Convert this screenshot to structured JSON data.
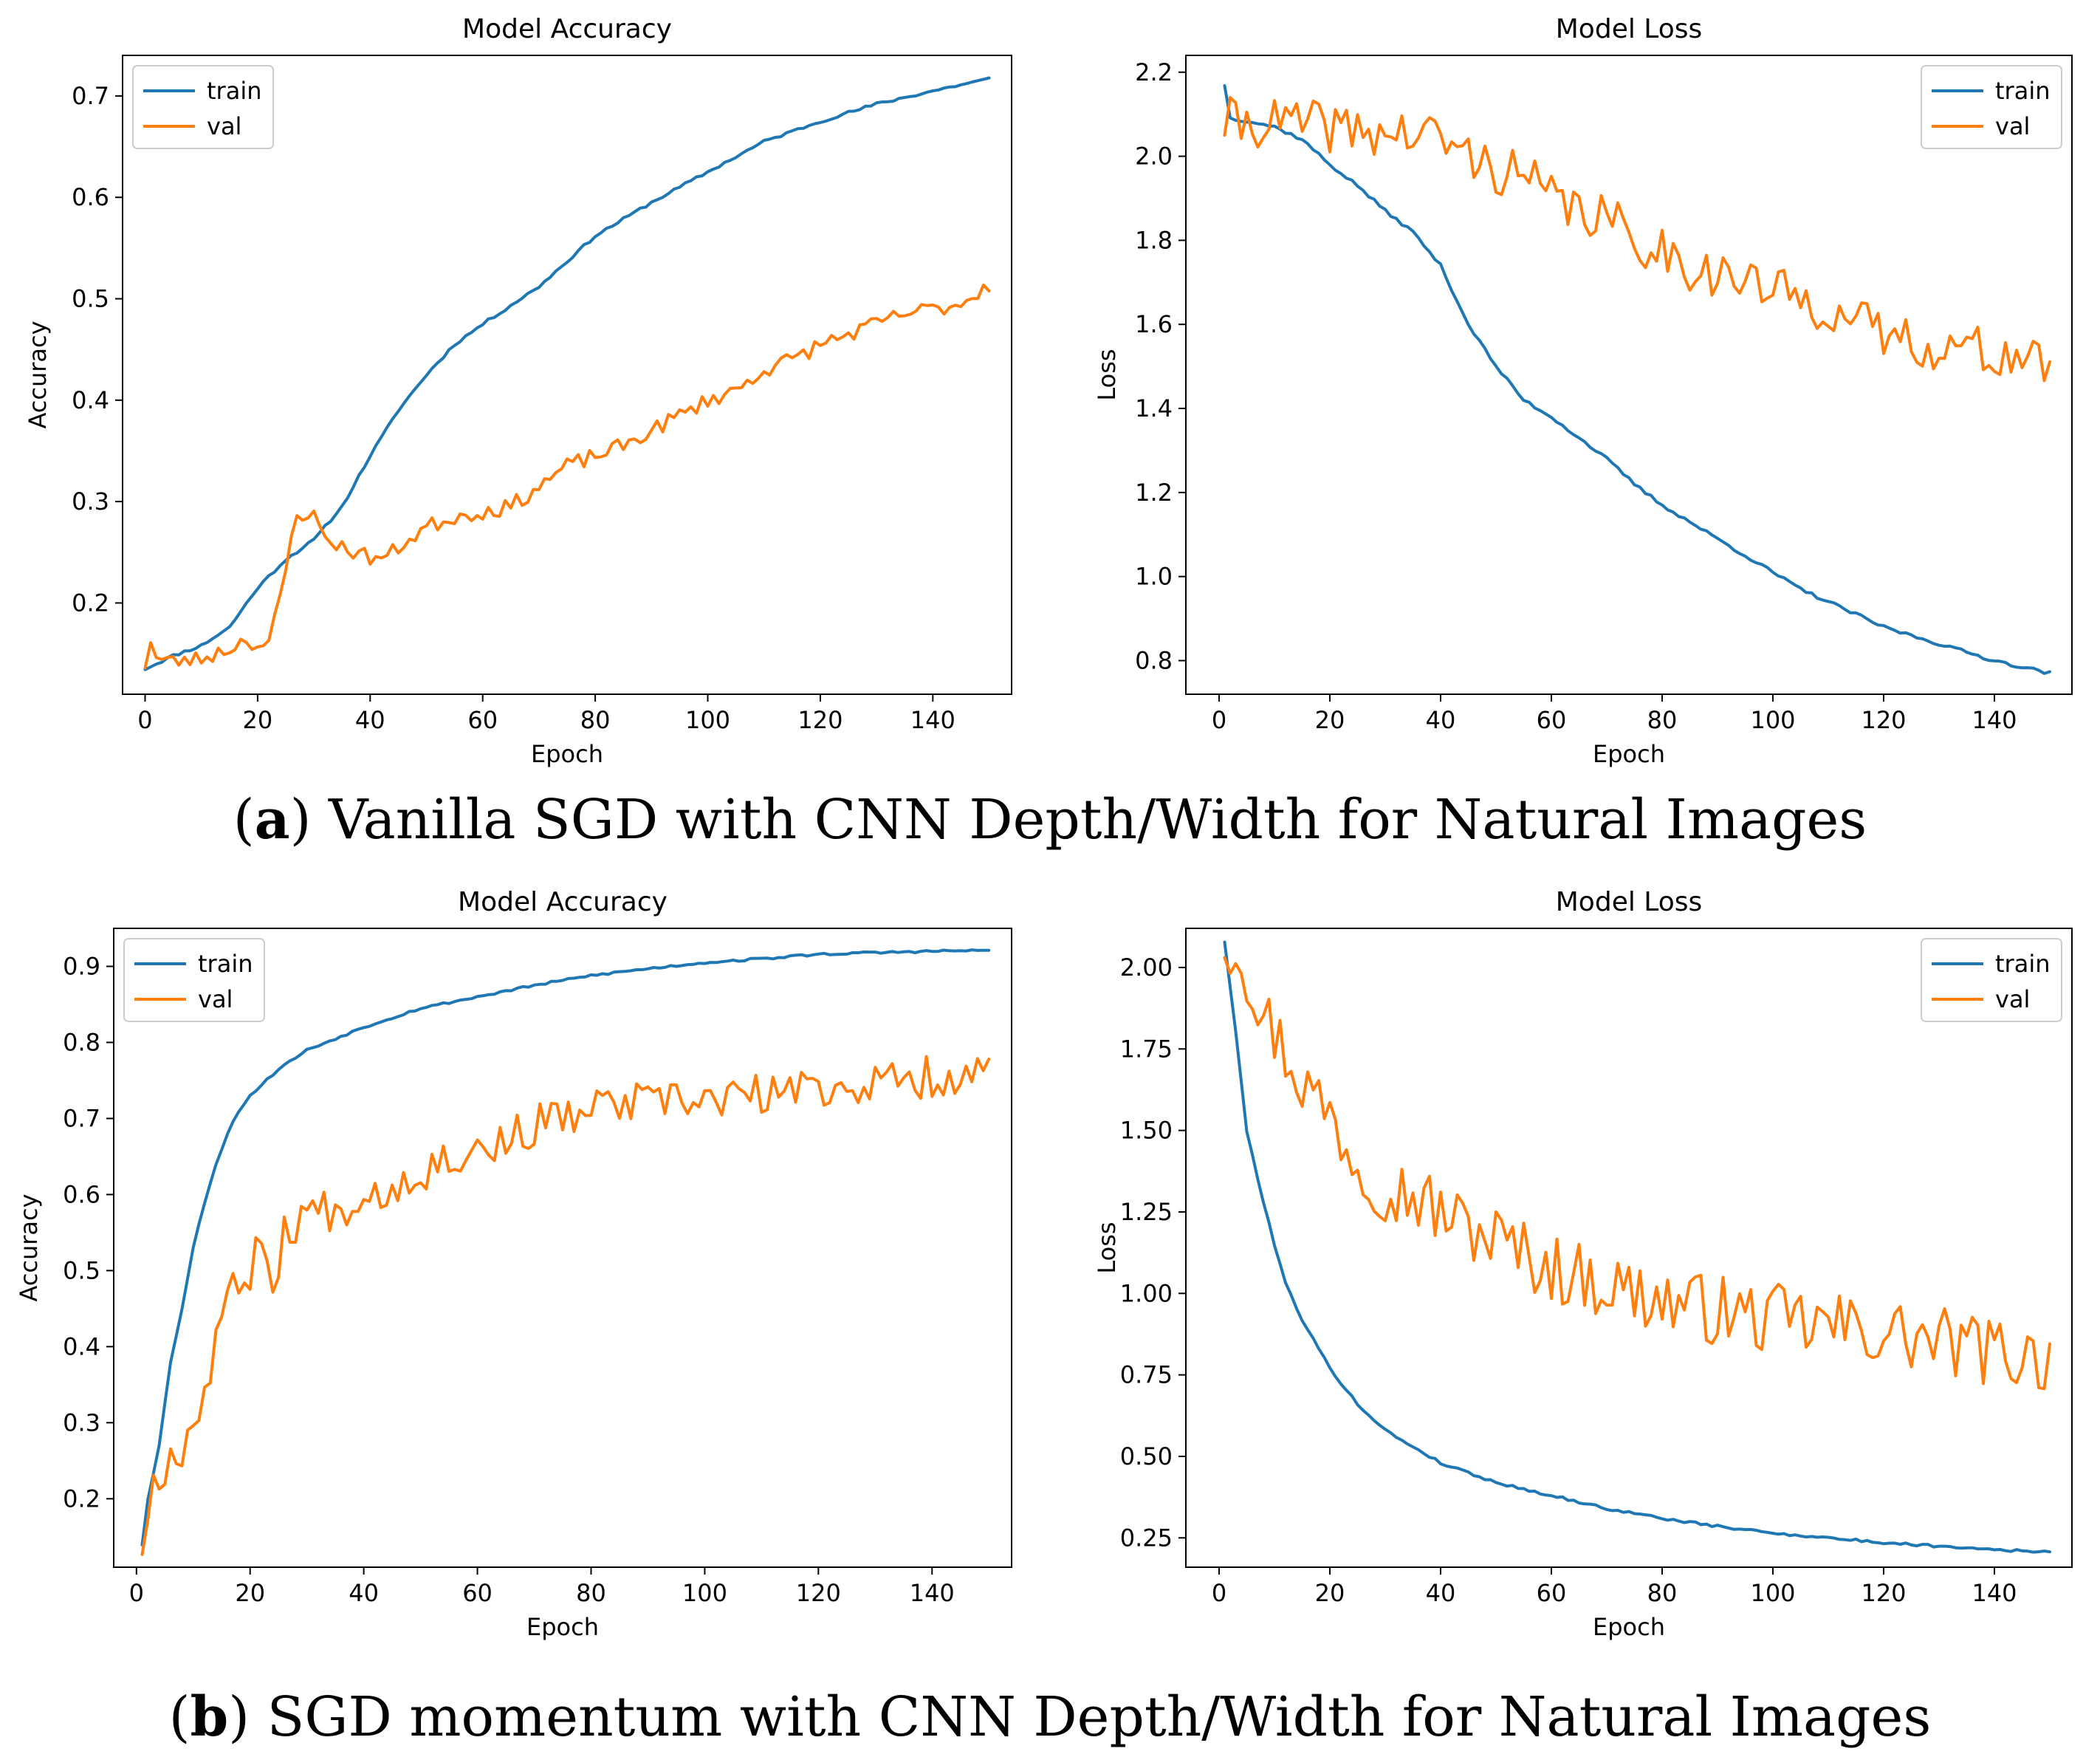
{
  "captions": {
    "a": {
      "letter": "a",
      "text": " Vanilla SGD with CNN Depth/Width for Natural Images"
    },
    "b": {
      "letter": "b",
      "text": " SGD momentum with CNN Depth/Width for Natural Images"
    }
  },
  "series_colors": {
    "train": "#1f77b4",
    "val": "#ff7f0e"
  },
  "chart_data": [
    {
      "id": "a-accuracy",
      "type": "line",
      "title": "Model Accuracy",
      "xlabel": "Epoch",
      "ylabel": "Accuracy",
      "xlim": [
        -4,
        154
      ],
      "ylim": [
        0.11,
        0.74
      ],
      "xticks": [
        0,
        20,
        40,
        60,
        80,
        100,
        120,
        140
      ],
      "yticks": [
        0.2,
        0.3,
        0.4,
        0.5,
        0.6,
        0.7
      ],
      "ytick_labels": [
        "0.2",
        "0.3",
        "0.4",
        "0.5",
        "0.6",
        "0.7"
      ],
      "legend_position": "upper left",
      "series": [
        {
          "name": "train",
          "x_start": 0,
          "x_end": 150,
          "noise": 0.0015,
          "seed": 11,
          "knots": [
            [
              0,
              0.135
            ],
            [
              5,
              0.148
            ],
            [
              10,
              0.158
            ],
            [
              15,
              0.176
            ],
            [
              20,
              0.215
            ],
            [
              25,
              0.243
            ],
            [
              30,
              0.262
            ],
            [
              35,
              0.295
            ],
            [
              40,
              0.345
            ],
            [
              45,
              0.39
            ],
            [
              50,
              0.425
            ],
            [
              55,
              0.455
            ],
            [
              60,
              0.475
            ],
            [
              70,
              0.512
            ],
            [
              80,
              0.562
            ],
            [
              90,
              0.595
            ],
            [
              100,
              0.625
            ],
            [
              110,
              0.655
            ],
            [
              120,
              0.675
            ],
            [
              130,
              0.692
            ],
            [
              140,
              0.705
            ],
            [
              150,
              0.717
            ]
          ]
        },
        {
          "name": "val",
          "x_start": 0,
          "x_end": 150,
          "noise": 0.008,
          "seed": 23,
          "knots": [
            [
              0,
              0.14
            ],
            [
              1,
              0.163
            ],
            [
              2,
              0.145
            ],
            [
              5,
              0.142
            ],
            [
              10,
              0.145
            ],
            [
              15,
              0.155
            ],
            [
              18,
              0.165
            ],
            [
              20,
              0.158
            ],
            [
              22,
              0.158
            ],
            [
              24,
              0.205
            ],
            [
              27,
              0.29
            ],
            [
              30,
              0.285
            ],
            [
              32,
              0.265
            ],
            [
              35,
              0.255
            ],
            [
              40,
              0.245
            ],
            [
              43,
              0.245
            ],
            [
              45,
              0.255
            ],
            [
              50,
              0.275
            ],
            [
              55,
              0.285
            ],
            [
              60,
              0.29
            ],
            [
              65,
              0.295
            ],
            [
              70,
              0.315
            ],
            [
              75,
              0.335
            ],
            [
              80,
              0.345
            ],
            [
              85,
              0.355
            ],
            [
              90,
              0.37
            ],
            [
              95,
              0.385
            ],
            [
              100,
              0.4
            ],
            [
              105,
              0.41
            ],
            [
              110,
              0.43
            ],
            [
              115,
              0.44
            ],
            [
              120,
              0.455
            ],
            [
              125,
              0.465
            ],
            [
              130,
              0.475
            ],
            [
              135,
              0.485
            ],
            [
              140,
              0.49
            ],
            [
              145,
              0.495
            ],
            [
              150,
              0.515
            ]
          ]
        }
      ]
    },
    {
      "id": "a-loss",
      "type": "line",
      "title": "Model Loss",
      "xlabel": "Epoch",
      "ylabel": "Loss",
      "xlim": [
        -6,
        154
      ],
      "ylim": [
        0.72,
        2.24
      ],
      "xticks": [
        0,
        20,
        40,
        60,
        80,
        100,
        120,
        140
      ],
      "yticks": [
        0.8,
        1.0,
        1.2,
        1.4,
        1.6,
        1.8,
        2.0,
        2.2
      ],
      "ytick_labels": [
        "0.8",
        "1.0",
        "1.2",
        "1.4",
        "1.6",
        "1.8",
        "2.0",
        "2.2"
      ],
      "legend_position": "upper right",
      "series": [
        {
          "name": "train",
          "x_start": 1,
          "x_end": 150,
          "noise": 0.004,
          "seed": 37,
          "knots": [
            [
              1,
              2.17
            ],
            [
              2,
              2.09
            ],
            [
              5,
              2.085
            ],
            [
              10,
              2.07
            ],
            [
              15,
              2.04
            ],
            [
              20,
              1.98
            ],
            [
              25,
              1.93
            ],
            [
              30,
              1.87
            ],
            [
              35,
              1.82
            ],
            [
              40,
              1.74
            ],
            [
              45,
              1.6
            ],
            [
              50,
              1.5
            ],
            [
              55,
              1.42
            ],
            [
              60,
              1.38
            ],
            [
              65,
              1.33
            ],
            [
              70,
              1.28
            ],
            [
              75,
              1.22
            ],
            [
              80,
              1.17
            ],
            [
              85,
              1.13
            ],
            [
              90,
              1.09
            ],
            [
              95,
              1.05
            ],
            [
              100,
              1.01
            ],
            [
              105,
              0.97
            ],
            [
              110,
              0.94
            ],
            [
              115,
              0.91
            ],
            [
              120,
              0.88
            ],
            [
              125,
              0.86
            ],
            [
              130,
              0.84
            ],
            [
              135,
              0.82
            ],
            [
              140,
              0.8
            ],
            [
              145,
              0.785
            ],
            [
              150,
              0.77
            ]
          ]
        },
        {
          "name": "val",
          "x_start": 1,
          "x_end": 150,
          "noise": 0.06,
          "seed": 41,
          "knots": [
            [
              1,
              2.08
            ],
            [
              5,
              2.08
            ],
            [
              10,
              2.08
            ],
            [
              15,
              2.075
            ],
            [
              20,
              2.07
            ],
            [
              25,
              2.06
            ],
            [
              30,
              2.055
            ],
            [
              35,
              2.05
            ],
            [
              40,
              2.045
            ],
            [
              45,
              2.0
            ],
            [
              50,
              1.97
            ],
            [
              55,
              1.95
            ],
            [
              60,
              1.9
            ],
            [
              65,
              1.87
            ],
            [
              70,
              1.85
            ],
            [
              75,
              1.8
            ],
            [
              80,
              1.78
            ],
            [
              85,
              1.74
            ],
            [
              90,
              1.72
            ],
            [
              95,
              1.7
            ],
            [
              100,
              1.68
            ],
            [
              105,
              1.66
            ],
            [
              110,
              1.64
            ],
            [
              115,
              1.6
            ],
            [
              120,
              1.58
            ],
            [
              125,
              1.56
            ],
            [
              130,
              1.55
            ],
            [
              135,
              1.54
            ],
            [
              140,
              1.53
            ],
            [
              145,
              1.52
            ],
            [
              150,
              1.5
            ]
          ]
        }
      ]
    },
    {
      "id": "b-accuracy",
      "type": "line",
      "title": "Model Accuracy",
      "xlabel": "Epoch",
      "ylabel": "Accuracy",
      "xlim": [
        -4,
        154
      ],
      "ylim": [
        0.11,
        0.95
      ],
      "xticks": [
        0,
        20,
        40,
        60,
        80,
        100,
        120,
        140
      ],
      "yticks": [
        0.2,
        0.3,
        0.4,
        0.5,
        0.6,
        0.7,
        0.8,
        0.9
      ],
      "ytick_labels": [
        "0.2",
        "0.3",
        "0.4",
        "0.5",
        "0.6",
        "0.7",
        "0.8",
        "0.9"
      ],
      "legend_position": "upper left",
      "series": [
        {
          "name": "train",
          "x_start": 1,
          "x_end": 150,
          "noise": 0.0015,
          "seed": 53,
          "knots": [
            [
              1,
              0.14
            ],
            [
              2,
              0.2
            ],
            [
              4,
              0.27
            ],
            [
              6,
              0.38
            ],
            [
              8,
              0.45
            ],
            [
              10,
              0.53
            ],
            [
              12,
              0.59
            ],
            [
              14,
              0.64
            ],
            [
              16,
              0.68
            ],
            [
              18,
              0.71
            ],
            [
              20,
              0.73
            ],
            [
              25,
              0.765
            ],
            [
              30,
              0.79
            ],
            [
              35,
              0.805
            ],
            [
              40,
              0.82
            ],
            [
              50,
              0.845
            ],
            [
              60,
              0.86
            ],
            [
              70,
              0.875
            ],
            [
              80,
              0.888
            ],
            [
              90,
              0.897
            ],
            [
              100,
              0.905
            ],
            [
              110,
              0.91
            ],
            [
              120,
              0.916
            ],
            [
              130,
              0.918
            ],
            [
              140,
              0.92
            ],
            [
              150,
              0.921
            ]
          ]
        },
        {
          "name": "val",
          "x_start": 1,
          "x_end": 150,
          "noise": 0.028,
          "seed": 67,
          "knots": [
            [
              1,
              0.14
            ],
            [
              3,
              0.22
            ],
            [
              5,
              0.245
            ],
            [
              8,
              0.27
            ],
            [
              10,
              0.3
            ],
            [
              12,
              0.34
            ],
            [
              15,
              0.45
            ],
            [
              20,
              0.5
            ],
            [
              22,
              0.55
            ],
            [
              25,
              0.47
            ],
            [
              26,
              0.55
            ],
            [
              30,
              0.58
            ],
            [
              35,
              0.58
            ],
            [
              40,
              0.6
            ],
            [
              45,
              0.61
            ],
            [
              50,
              0.63
            ],
            [
              55,
              0.65
            ],
            [
              60,
              0.66
            ],
            [
              65,
              0.67
            ],
            [
              70,
              0.69
            ],
            [
              75,
              0.7
            ],
            [
              80,
              0.71
            ],
            [
              85,
              0.72
            ],
            [
              90,
              0.72
            ],
            [
              95,
              0.72
            ],
            [
              100,
              0.725
            ],
            [
              110,
              0.73
            ],
            [
              120,
              0.74
            ],
            [
              130,
              0.745
            ],
            [
              140,
              0.755
            ],
            [
              150,
              0.76
            ]
          ]
        }
      ]
    },
    {
      "id": "b-loss",
      "type": "line",
      "title": "Model Loss",
      "xlabel": "Epoch",
      "ylabel": "Loss",
      "xlim": [
        -6,
        154
      ],
      "ylim": [
        0.16,
        2.12
      ],
      "xticks": [
        0,
        20,
        40,
        60,
        80,
        100,
        120,
        140
      ],
      "yticks": [
        0.25,
        0.5,
        0.75,
        1.0,
        1.25,
        1.5,
        1.75,
        2.0
      ],
      "ytick_labels": [
        "0.25",
        "0.50",
        "0.75",
        "1.00",
        "1.25",
        "1.50",
        "1.75",
        "2.00"
      ],
      "legend_position": "upper right",
      "series": [
        {
          "name": "train",
          "x_start": 1,
          "x_end": 150,
          "noise": 0.004,
          "seed": 79,
          "knots": [
            [
              1,
              2.08
            ],
            [
              3,
              1.8
            ],
            [
              5,
              1.5
            ],
            [
              7,
              1.35
            ],
            [
              10,
              1.15
            ],
            [
              12,
              1.03
            ],
            [
              15,
              0.92
            ],
            [
              20,
              0.77
            ],
            [
              25,
              0.66
            ],
            [
              30,
              0.58
            ],
            [
              35,
              0.53
            ],
            [
              40,
              0.48
            ],
            [
              50,
              0.42
            ],
            [
              60,
              0.38
            ],
            [
              70,
              0.34
            ],
            [
              80,
              0.31
            ],
            [
              90,
              0.285
            ],
            [
              100,
              0.265
            ],
            [
              110,
              0.25
            ],
            [
              120,
              0.235
            ],
            [
              130,
              0.225
            ],
            [
              140,
              0.215
            ],
            [
              150,
              0.205
            ]
          ]
        },
        {
          "name": "val",
          "x_start": 1,
          "x_end": 150,
          "noise": 0.11,
          "seed": 97,
          "knots": [
            [
              1,
              2.08
            ],
            [
              3,
              2.07
            ],
            [
              5,
              2.0
            ],
            [
              8,
              1.85
            ],
            [
              10,
              1.8
            ],
            [
              15,
              1.65
            ],
            [
              20,
              1.55
            ],
            [
              25,
              1.4
            ],
            [
              30,
              1.33
            ],
            [
              35,
              1.3
            ],
            [
              40,
              1.25
            ],
            [
              45,
              1.2
            ],
            [
              50,
              1.17
            ],
            [
              55,
              1.12
            ],
            [
              60,
              1.08
            ],
            [
              65,
              1.05
            ],
            [
              70,
              1.03
            ],
            [
              75,
              1.0
            ],
            [
              80,
              0.98
            ],
            [
              85,
              0.96
            ],
            [
              90,
              0.95
            ],
            [
              95,
              0.93
            ],
            [
              100,
              0.92
            ],
            [
              110,
              0.9
            ],
            [
              120,
              0.88
            ],
            [
              130,
              0.85
            ],
            [
              140,
              0.82
            ],
            [
              150,
              0.8
            ]
          ]
        }
      ]
    }
  ]
}
